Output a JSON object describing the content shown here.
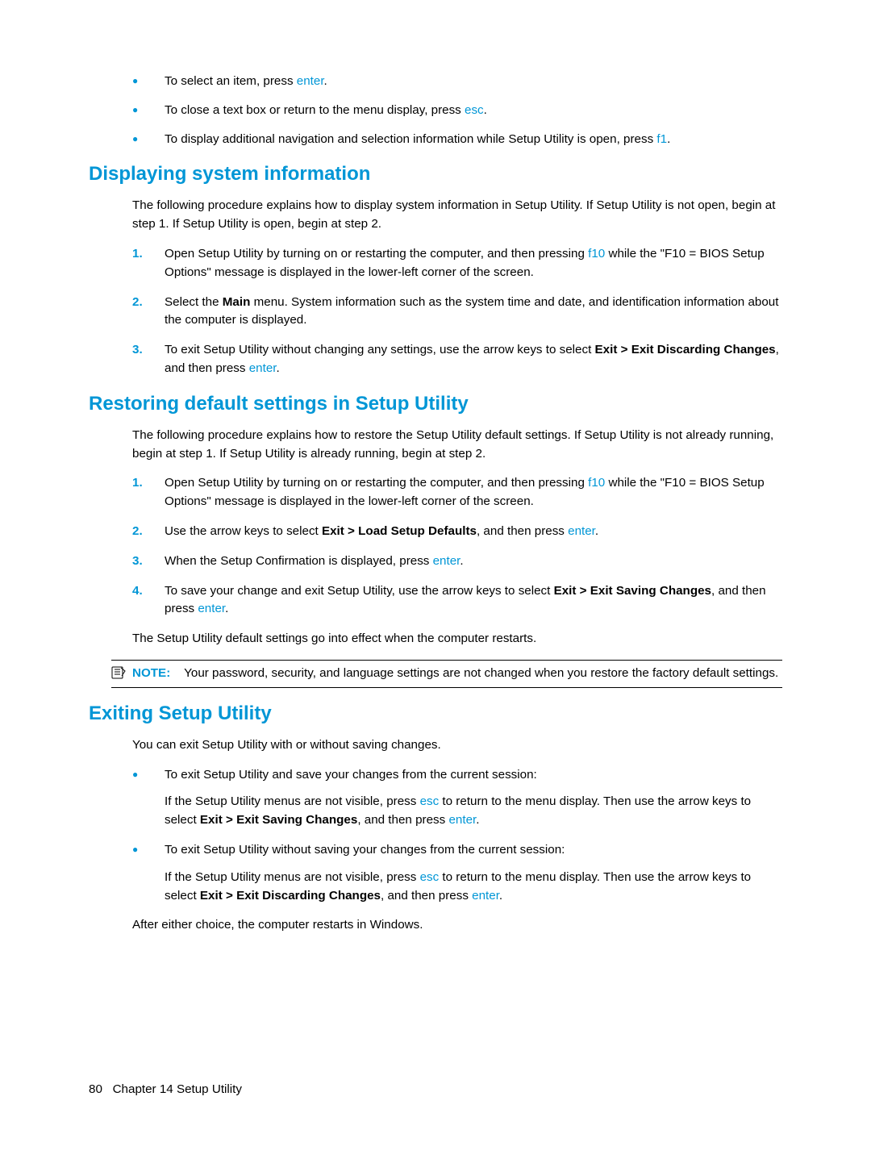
{
  "top_bullets": {
    "items": [
      {
        "pre": "To select an item, press ",
        "key": "enter",
        "post": "."
      },
      {
        "pre": "To close a text box or return to the menu display, press ",
        "key": "esc",
        "post": "."
      },
      {
        "pre": "To display additional navigation and selection information while Setup Utility is open, press ",
        "key": "f1",
        "post": "."
      }
    ]
  },
  "section1": {
    "title": "Displaying system information",
    "intro": "The following procedure explains how to display system information in Setup Utility. If Setup Utility is not open, begin at step 1. If Setup Utility is open, begin at step 2.",
    "steps": [
      {
        "num": "1.",
        "parts": [
          {
            "t": "Open Setup Utility by turning on or restarting the computer, and then pressing "
          },
          {
            "t": "f10",
            "cls": "key"
          },
          {
            "t": " while the \"F10 = BIOS Setup Options\" message is displayed in the lower-left corner of the screen."
          }
        ]
      },
      {
        "num": "2.",
        "parts": [
          {
            "t": "Select the "
          },
          {
            "t": "Main",
            "cls": "bold"
          },
          {
            "t": " menu. System information such as the system time and date, and identification information about the computer is displayed."
          }
        ]
      },
      {
        "num": "3.",
        "parts": [
          {
            "t": "To exit Setup Utility without changing any settings, use the arrow keys to select "
          },
          {
            "t": "Exit > Exit Discarding Changes",
            "cls": "bold"
          },
          {
            "t": ", and then press "
          },
          {
            "t": "enter",
            "cls": "key"
          },
          {
            "t": "."
          }
        ]
      }
    ]
  },
  "section2": {
    "title": "Restoring default settings in Setup Utility",
    "intro": "The following procedure explains how to restore the Setup Utility default settings. If Setup Utility is not already running, begin at step 1. If Setup Utility is already running, begin at step 2.",
    "steps": [
      {
        "num": "1.",
        "parts": [
          {
            "t": "Open Setup Utility by turning on or restarting the computer, and then pressing "
          },
          {
            "t": "f10",
            "cls": "key"
          },
          {
            "t": " while the \"F10 = BIOS Setup Options\" message is displayed in the lower-left corner of the screen."
          }
        ]
      },
      {
        "num": "2.",
        "parts": [
          {
            "t": "Use the arrow keys to select "
          },
          {
            "t": "Exit > Load Setup Defaults",
            "cls": "bold"
          },
          {
            "t": ", and then press "
          },
          {
            "t": "enter",
            "cls": "key"
          },
          {
            "t": "."
          }
        ]
      },
      {
        "num": "3.",
        "parts": [
          {
            "t": "When the Setup Confirmation is displayed, press "
          },
          {
            "t": "enter",
            "cls": "key"
          },
          {
            "t": "."
          }
        ]
      },
      {
        "num": "4.",
        "parts": [
          {
            "t": "To save your change and exit Setup Utility, use the arrow keys to select "
          },
          {
            "t": "Exit > Exit Saving Changes",
            "cls": "bold"
          },
          {
            "t": ", and then press "
          },
          {
            "t": "enter",
            "cls": "key"
          },
          {
            "t": "."
          }
        ]
      }
    ],
    "after": "The Setup Utility default settings go into effect when the computer restarts.",
    "note_label": "NOTE:",
    "note_text": "Your password, security, and language settings are not changed when you restore the factory default settings."
  },
  "section3": {
    "title": "Exiting Setup Utility",
    "intro": "You can exit Setup Utility with or without saving changes.",
    "bullets": [
      {
        "lead": "To exit Setup Utility and save your changes from the current session:",
        "detail_parts": [
          {
            "t": "If the Setup Utility menus are not visible, press "
          },
          {
            "t": "esc",
            "cls": "key"
          },
          {
            "t": " to return to the menu display. Then use the arrow keys to select "
          },
          {
            "t": "Exit > Exit Saving Changes",
            "cls": "bold"
          },
          {
            "t": ", and then press "
          },
          {
            "t": "enter",
            "cls": "key"
          },
          {
            "t": "."
          }
        ]
      },
      {
        "lead": "To exit Setup Utility without saving your changes from the current session:",
        "detail_parts": [
          {
            "t": "If the Setup Utility menus are not visible, press "
          },
          {
            "t": "esc",
            "cls": "key"
          },
          {
            "t": " to return to the menu display. Then use the arrow keys to select "
          },
          {
            "t": "Exit > Exit Discarding Changes",
            "cls": "bold"
          },
          {
            "t": ", and then press "
          },
          {
            "t": "enter",
            "cls": "key"
          },
          {
            "t": "."
          }
        ]
      }
    ],
    "after": "After either choice, the computer restarts in Windows."
  },
  "footer": {
    "page_num": "80",
    "chapter": "Chapter 14   Setup Utility"
  }
}
